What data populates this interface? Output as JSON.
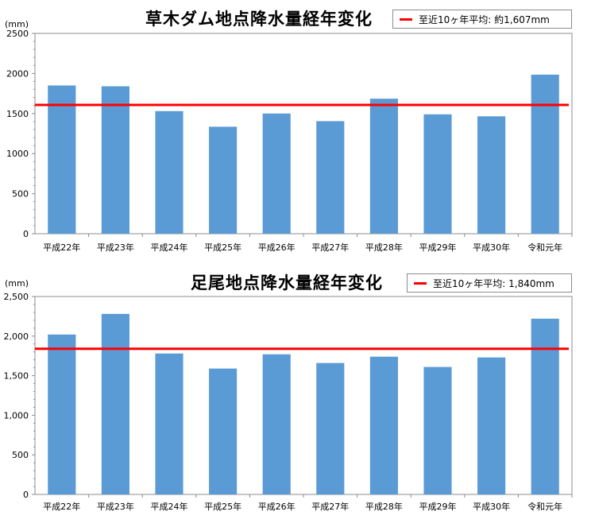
{
  "chart_data": [
    {
      "type": "bar",
      "title": "草木ダム地点降水量経年変化",
      "unit": "(mm)",
      "categories": [
        "平成22年",
        "平成23年",
        "平成24年",
        "平成25年",
        "平成26年",
        "平成27年",
        "平成28年",
        "平成29年",
        "平成30年",
        "令和元年"
      ],
      "values": [
        1850,
        1840,
        1530,
        1335,
        1500,
        1405,
        1685,
        1490,
        1465,
        1985
      ],
      "ylim": [
        0,
        2500
      ],
      "yticks": [
        "0",
        "500",
        "1000",
        "1500",
        "2000",
        "2500"
      ],
      "grid": false,
      "bar_color": "#5b9bd5",
      "reference_line": {
        "label": "至近10ヶ年平均: 約1,607mm",
        "value": 1607,
        "color": "#ff0000"
      },
      "legend_position": "top-right"
    },
    {
      "type": "bar",
      "title": "足尾地点降水量経年変化",
      "unit": "(mm)",
      "categories": [
        "平成22年",
        "平成23年",
        "平成24年",
        "平成25年",
        "平成26年",
        "平成27年",
        "平成28年",
        "平成29年",
        "平成30年",
        "令和元年"
      ],
      "values": [
        2020,
        2280,
        1780,
        1590,
        1770,
        1660,
        1740,
        1610,
        1730,
        2220
      ],
      "ylim": [
        0,
        2500
      ],
      "yticks": [
        "0",
        "500",
        "1,000",
        "1,500",
        "2,000",
        "2,500"
      ],
      "grid": false,
      "bar_color": "#5b9bd5",
      "reference_line": {
        "label": "至近10ヶ年平均: 1,840mm",
        "value": 1840,
        "color": "#ff0000"
      },
      "legend_position": "top-right"
    }
  ]
}
